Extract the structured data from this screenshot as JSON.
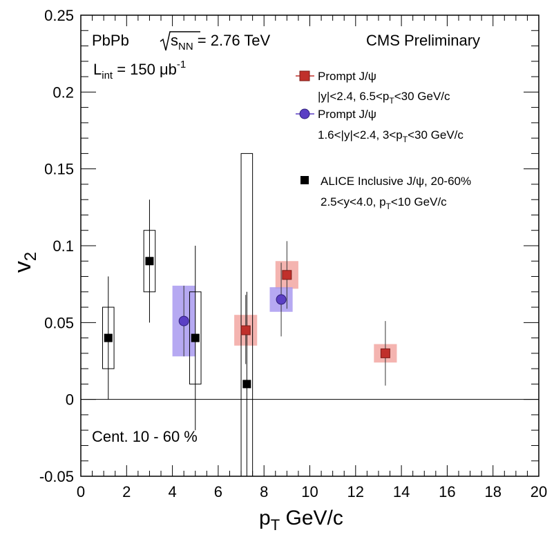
{
  "chart_data": {
    "type": "scatter",
    "xlim": [
      0,
      20
    ],
    "ylim": [
      -0.05,
      0.25
    ],
    "x_ticks": [
      "0",
      "2",
      "4",
      "6",
      "8",
      "10",
      "12",
      "14",
      "16",
      "18",
      "20"
    ],
    "y_ticks": [
      "-0.05",
      "0",
      "0.05",
      "0.1",
      "0.15",
      "0.2",
      "0.25"
    ],
    "ylabel": "v",
    "ylabel_sub": "2",
    "xlabel": "p",
    "xlabel_sub": "T",
    "xlabel_unit": "GeV/c",
    "annotations": {
      "system": "PbPb",
      "energy_sqrt": "s",
      "energy_sub": "NN",
      "energy_value": "= 2.76 TeV",
      "experiment": "CMS Preliminary",
      "lumi_L": "L",
      "lumi_sub": "int",
      "lumi_value": "= 150 μb",
      "lumi_sup": "-1",
      "centrality": "Cent. 10 - 60 %"
    },
    "grid": false,
    "reference_line_y": 0,
    "legend_position": "top-right",
    "series": [
      {
        "name": "Prompt J/ψ",
        "legend_line2_parts": [
          "|y|<2.4, 6.5<p",
          "T",
          "<30 GeV/c"
        ],
        "marker": "square",
        "color": "#c0302b",
        "box_color": "#f2a7a2",
        "points": [
          {
            "x": 7.2,
            "y": 0.045,
            "stat_lo": 0.023,
            "stat_hi": 0.068,
            "sys_lo": 0.035,
            "sys_hi": 0.055,
            "sys_xhalf": 0.5
          },
          {
            "x": 9.0,
            "y": 0.081,
            "stat_lo": 0.059,
            "stat_hi": 0.103,
            "sys_lo": 0.072,
            "sys_hi": 0.09,
            "sys_xhalf": 0.5
          },
          {
            "x": 13.3,
            "y": 0.03,
            "stat_lo": 0.009,
            "stat_hi": 0.051,
            "sys_lo": 0.024,
            "sys_hi": 0.036,
            "sys_xhalf": 0.5
          }
        ]
      },
      {
        "name": "Prompt J/ψ",
        "legend_line2_parts": [
          "1.6<|y|<2.4, 3<p",
          "T",
          "<30 GeV/c"
        ],
        "marker": "circle",
        "color": "#5b3fc4",
        "box_color": "#a99af0",
        "points": [
          {
            "x": 4.5,
            "y": 0.051,
            "stat_lo": 0.028,
            "stat_hi": 0.074,
            "sys_lo": 0.028,
            "sys_hi": 0.074,
            "sys_xhalf": 0.5
          },
          {
            "x": 8.75,
            "y": 0.065,
            "stat_lo": 0.041,
            "stat_hi": 0.089,
            "sys_lo": 0.057,
            "sys_hi": 0.073,
            "sys_xhalf": 0.5
          }
        ]
      },
      {
        "name": "ALICE Inclusive J/ψ, 20-60%",
        "legend_line2_parts": [
          "2.5<y<4.0, p",
          "T",
          "<10 GeV/c"
        ],
        "marker": "square",
        "color": "#000000",
        "box_color": "none",
        "points": [
          {
            "x": 1.2,
            "y": 0.04,
            "stat_lo": 0.0,
            "stat_hi": 0.08,
            "sys_lo": 0.02,
            "sys_hi": 0.06,
            "sys_xhalf": 0.25
          },
          {
            "x": 3.0,
            "y": 0.09,
            "stat_lo": 0.05,
            "stat_hi": 0.13,
            "sys_lo": 0.07,
            "sys_hi": 0.11,
            "sys_xhalf": 0.25
          },
          {
            "x": 5.0,
            "y": 0.04,
            "stat_lo": -0.02,
            "stat_hi": 0.1,
            "sys_lo": 0.01,
            "sys_hi": 0.07,
            "sys_xhalf": 0.25
          },
          {
            "x": 7.25,
            "y": 0.01,
            "stat_lo": -0.05,
            "stat_hi": 0.07,
            "sys_lo": -0.05,
            "sys_hi": 0.16,
            "sys_xhalf": 0.25
          }
        ]
      }
    ]
  }
}
